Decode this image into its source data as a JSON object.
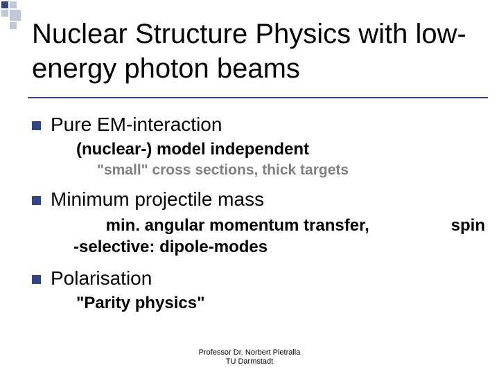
{
  "title": "Nuclear Structure Physics with low-energy photon beams",
  "items": [
    {
      "heading": "Pure EM-interaction",
      "sub1": "(nuclear-) model independent",
      "sub2": "\"small\" cross sections, thick targets"
    },
    {
      "heading": "Minimum projectile mass",
      "sub1_left": "       min. angular momentum transfer,\n-selective: dipole-modes",
      "sub1_right": "spin"
    },
    {
      "heading": "Polarisation",
      "sub1": "\"Parity physics\""
    }
  ],
  "footer": {
    "line1": "Professor Dr. Norbert Pietralla",
    "line2": "TU Darmstadt"
  },
  "colors": {
    "accent": "#33477f",
    "decor_light": "#c0c8d8",
    "text": "#000000",
    "muted": "#808080",
    "background": "#ffffff"
  }
}
